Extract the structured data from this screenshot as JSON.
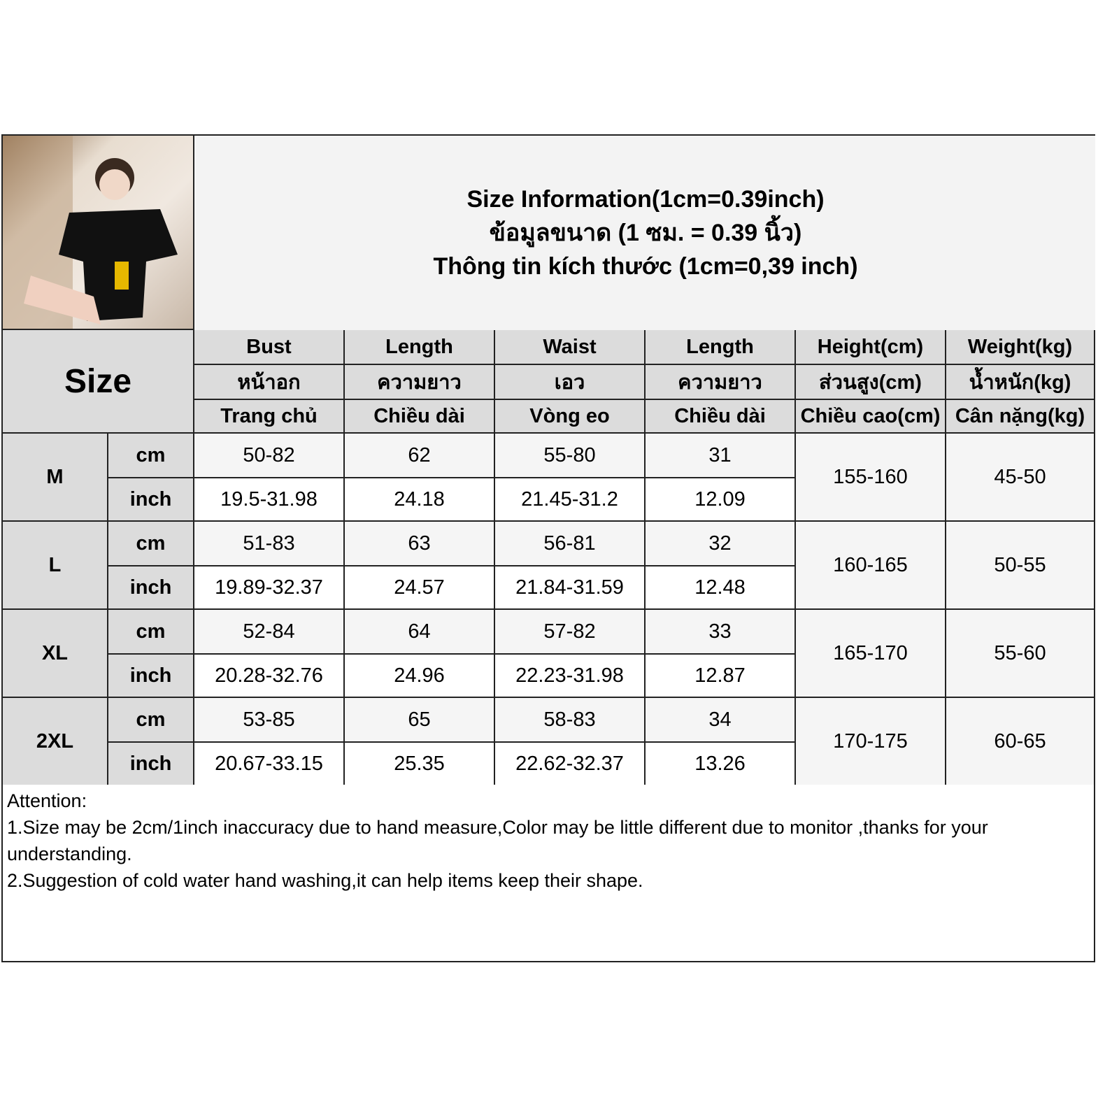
{
  "title_lines": [
    "Size Information(1cm=0.39inch)",
    "ข้อมูลขนาด (1 ซม. = 0.39 นิ้ว)",
    "Thông tin kích thước (1cm=0,39 inch)"
  ],
  "size_label": "Size",
  "columns": [
    {
      "en": "Bust",
      "th": "หน้าอก",
      "vi": "Trang chủ"
    },
    {
      "en": "Length",
      "th": "ความยาว",
      "vi": "Chiều dài"
    },
    {
      "en": "Waist",
      "th": "เอว",
      "vi": "Vòng eo"
    },
    {
      "en": "Length",
      "th": "ความยาว",
      "vi": "Chiều dài"
    },
    {
      "en": "Height(cm)",
      "th": "ส่วนสูง(cm)",
      "vi": "Chiều cao(cm)"
    },
    {
      "en": "Weight(kg)",
      "th": "น้ำหนัก(kg)",
      "vi": "Cân nặng(kg)"
    }
  ],
  "unit_labels": [
    "cm",
    "inch"
  ],
  "rows": [
    {
      "size": "M",
      "cm": [
        "50-82",
        "62",
        "55-80",
        "31"
      ],
      "inch": [
        "19.5-31.98",
        "24.18",
        "21.45-31.2",
        "12.09"
      ],
      "height": "155-160",
      "weight": "45-50"
    },
    {
      "size": "L",
      "cm": [
        "51-83",
        "63",
        "56-81",
        "32"
      ],
      "inch": [
        "19.89-32.37",
        "24.57",
        "21.84-31.59",
        "12.48"
      ],
      "height": "160-165",
      "weight": "50-55"
    },
    {
      "size": "XL",
      "cm": [
        "52-84",
        "64",
        "57-82",
        "33"
      ],
      "inch": [
        "20.28-32.76",
        "24.96",
        "22.23-31.98",
        "12.87"
      ],
      "height": "165-170",
      "weight": "55-60"
    },
    {
      "size": "2XL",
      "cm": [
        "53-85",
        "65",
        "58-83",
        "34"
      ],
      "inch": [
        "20.67-33.15",
        "25.35",
        "22.62-32.37",
        "13.26"
      ],
      "height": "170-175",
      "weight": "60-65"
    }
  ],
  "notes": [
    "Attention:",
    "1.Size may be 2cm/1inch inaccuracy due to hand measure,Color may be little different due to monitor ,thanks for your understanding.",
    "2.Suggestion of cold water hand washing,it can help items keep their shape."
  ]
}
